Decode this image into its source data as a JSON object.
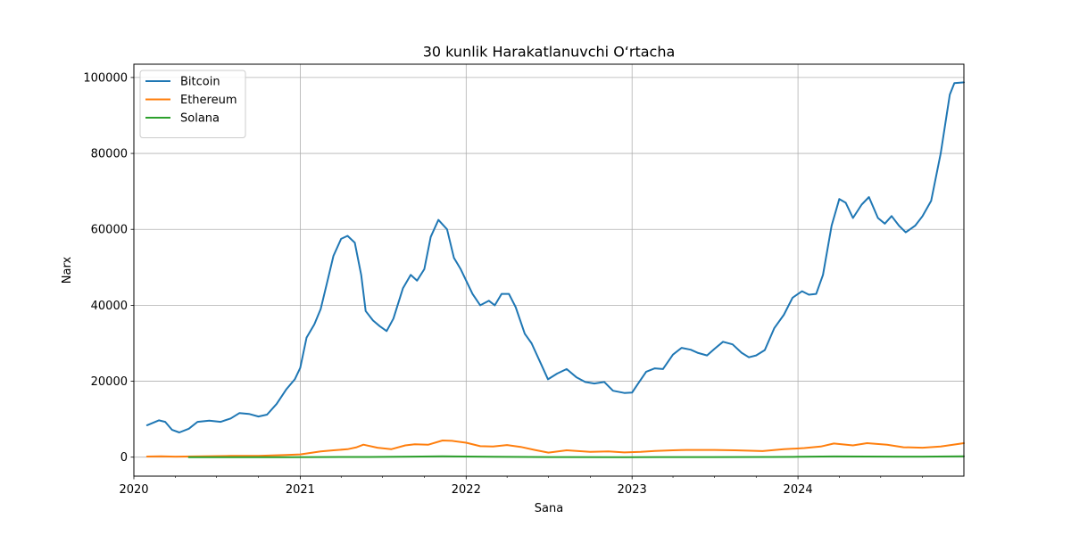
{
  "chart_data": {
    "type": "line",
    "title": "30 kunlik Harakatlanuvchi O‘rtacha",
    "xlabel": "Sana",
    "ylabel": "Narx",
    "xlim": [
      "2020-01-01",
      "2024-12-31"
    ],
    "ylim": [
      -5000,
      103500
    ],
    "x_ticks": [
      "2020",
      "2021",
      "2022",
      "2023",
      "2024"
    ],
    "y_ticks": [
      0,
      20000,
      40000,
      60000,
      80000,
      100000
    ],
    "y_tick_labels": [
      "0",
      "20000",
      "40000",
      "60000",
      "80000",
      "100000"
    ],
    "grid": true,
    "legend_position": "top-left",
    "series": [
      {
        "name": "Bitcoin",
        "color": "#1f77b4",
        "points": [
          [
            "2020-01-30",
            8400
          ],
          [
            "2020-02-25",
            9700
          ],
          [
            "2020-03-10",
            9300
          ],
          [
            "2020-03-25",
            7200
          ],
          [
            "2020-04-10",
            6500
          ],
          [
            "2020-05-01",
            7500
          ],
          [
            "2020-05-20",
            9300
          ],
          [
            "2020-06-15",
            9600
          ],
          [
            "2020-07-10",
            9300
          ],
          [
            "2020-08-01",
            10200
          ],
          [
            "2020-08-20",
            11600
          ],
          [
            "2020-09-10",
            11400
          ],
          [
            "2020-10-01",
            10700
          ],
          [
            "2020-10-20",
            11200
          ],
          [
            "2020-11-10",
            14000
          ],
          [
            "2020-12-01",
            17800
          ],
          [
            "2020-12-20",
            20500
          ],
          [
            "2021-01-01",
            23500
          ],
          [
            "2021-01-15",
            31500
          ],
          [
            "2021-02-01",
            35000
          ],
          [
            "2021-02-15",
            39000
          ],
          [
            "2021-03-01",
            46000
          ],
          [
            "2021-03-15",
            53000
          ],
          [
            "2021-04-01",
            57500
          ],
          [
            "2021-04-15",
            58300
          ],
          [
            "2021-05-01",
            56500
          ],
          [
            "2021-05-15",
            48000
          ],
          [
            "2021-05-25",
            38500
          ],
          [
            "2021-06-10",
            36000
          ],
          [
            "2021-06-25",
            34500
          ],
          [
            "2021-07-10",
            33200
          ],
          [
            "2021-07-25",
            36500
          ],
          [
            "2021-08-15",
            44500
          ],
          [
            "2021-09-01",
            48000
          ],
          [
            "2021-09-15",
            46500
          ],
          [
            "2021-10-01",
            49500
          ],
          [
            "2021-10-15",
            58000
          ],
          [
            "2021-11-01",
            62500
          ],
          [
            "2021-11-20",
            60000
          ],
          [
            "2021-12-05",
            52500
          ],
          [
            "2021-12-20",
            49500
          ],
          [
            "2022-01-01",
            46500
          ],
          [
            "2022-01-15",
            43000
          ],
          [
            "2022-02-01",
            40000
          ],
          [
            "2022-02-20",
            41200
          ],
          [
            "2022-03-05",
            40000
          ],
          [
            "2022-03-20",
            43000
          ],
          [
            "2022-04-05",
            43000
          ],
          [
            "2022-04-20",
            39500
          ],
          [
            "2022-05-10",
            32500
          ],
          [
            "2022-05-25",
            30000
          ],
          [
            "2022-06-15",
            24500
          ],
          [
            "2022-06-30",
            20500
          ],
          [
            "2022-07-20",
            22000
          ],
          [
            "2022-08-10",
            23200
          ],
          [
            "2022-09-01",
            21000
          ],
          [
            "2022-09-20",
            19800
          ],
          [
            "2022-10-10",
            19400
          ],
          [
            "2022-11-01",
            19800
          ],
          [
            "2022-11-20",
            17500
          ],
          [
            "2022-12-15",
            16900
          ],
          [
            "2023-01-01",
            17000
          ],
          [
            "2023-01-15",
            19500
          ],
          [
            "2023-02-01",
            22500
          ],
          [
            "2023-02-20",
            23400
          ],
          [
            "2023-03-10",
            23200
          ],
          [
            "2023-04-01",
            27000
          ],
          [
            "2023-04-20",
            28800
          ],
          [
            "2023-05-10",
            28300
          ],
          [
            "2023-05-25",
            27500
          ],
          [
            "2023-06-15",
            26800
          ],
          [
            "2023-07-01",
            28500
          ],
          [
            "2023-07-20",
            30400
          ],
          [
            "2023-08-10",
            29700
          ],
          [
            "2023-08-30",
            27500
          ],
          [
            "2023-09-15",
            26300
          ],
          [
            "2023-10-01",
            26800
          ],
          [
            "2023-10-20",
            28200
          ],
          [
            "2023-11-10",
            34000
          ],
          [
            "2023-12-01",
            37500
          ],
          [
            "2023-12-20",
            42000
          ],
          [
            "2024-01-10",
            43700
          ],
          [
            "2024-01-25",
            42800
          ],
          [
            "2024-02-10",
            43000
          ],
          [
            "2024-02-25",
            48000
          ],
          [
            "2024-03-15",
            61000
          ],
          [
            "2024-04-01",
            68000
          ],
          [
            "2024-04-15",
            67000
          ],
          [
            "2024-05-01",
            63000
          ],
          [
            "2024-05-20",
            66500
          ],
          [
            "2024-06-05",
            68500
          ],
          [
            "2024-06-25",
            63000
          ],
          [
            "2024-07-10",
            61500
          ],
          [
            "2024-07-25",
            63500
          ],
          [
            "2024-08-10",
            61000
          ],
          [
            "2024-08-25",
            59200
          ],
          [
            "2024-09-15",
            61000
          ],
          [
            "2024-10-01",
            63500
          ],
          [
            "2024-10-20",
            67500
          ],
          [
            "2024-11-10",
            80000
          ],
          [
            "2024-11-30",
            95500
          ],
          [
            "2024-12-10",
            98500
          ],
          [
            "2024-12-31",
            98700
          ]
        ]
      },
      {
        "name": "Ethereum",
        "color": "#ff7f0e",
        "points": [
          [
            "2020-01-30",
            170
          ],
          [
            "2020-03-01",
            240
          ],
          [
            "2020-04-01",
            150
          ],
          [
            "2020-06-01",
            230
          ],
          [
            "2020-08-01",
            330
          ],
          [
            "2020-10-01",
            360
          ],
          [
            "2020-12-01",
            560
          ],
          [
            "2021-01-01",
            740
          ],
          [
            "2021-02-15",
            1500
          ],
          [
            "2021-03-15",
            1800
          ],
          [
            "2021-04-15",
            2100
          ],
          [
            "2021-05-05",
            2600
          ],
          [
            "2021-05-20",
            3300
          ],
          [
            "2021-06-20",
            2500
          ],
          [
            "2021-07-20",
            2100
          ],
          [
            "2021-08-20",
            3100
          ],
          [
            "2021-09-10",
            3400
          ],
          [
            "2021-10-10",
            3300
          ],
          [
            "2021-11-10",
            4400
          ],
          [
            "2021-12-01",
            4300
          ],
          [
            "2022-01-01",
            3800
          ],
          [
            "2022-02-01",
            2900
          ],
          [
            "2022-03-01",
            2800
          ],
          [
            "2022-04-01",
            3200
          ],
          [
            "2022-05-01",
            2700
          ],
          [
            "2022-06-01",
            1900
          ],
          [
            "2022-07-01",
            1200
          ],
          [
            "2022-08-10",
            1800
          ],
          [
            "2022-10-01",
            1400
          ],
          [
            "2022-11-10",
            1500
          ],
          [
            "2022-12-15",
            1250
          ],
          [
            "2023-01-20",
            1400
          ],
          [
            "2023-02-20",
            1650
          ],
          [
            "2023-04-01",
            1800
          ],
          [
            "2023-05-01",
            1900
          ],
          [
            "2023-07-01",
            1900
          ],
          [
            "2023-08-15",
            1800
          ],
          [
            "2023-10-15",
            1600
          ],
          [
            "2023-12-01",
            2100
          ],
          [
            "2024-01-15",
            2400
          ],
          [
            "2024-02-20",
            2800
          ],
          [
            "2024-03-20",
            3600
          ],
          [
            "2024-05-01",
            3100
          ],
          [
            "2024-06-01",
            3700
          ],
          [
            "2024-07-15",
            3300
          ],
          [
            "2024-08-20",
            2600
          ],
          [
            "2024-10-01",
            2500
          ],
          [
            "2024-11-10",
            2800
          ],
          [
            "2024-12-31",
            3700
          ]
        ]
      },
      {
        "name": "Solana",
        "color": "#2ca02c",
        "points": [
          [
            "2020-05-01",
            1
          ],
          [
            "2020-12-01",
            2
          ],
          [
            "2021-02-01",
            20
          ],
          [
            "2021-06-01",
            40
          ],
          [
            "2021-09-01",
            150
          ],
          [
            "2021-11-10",
            220
          ],
          [
            "2022-03-01",
            100
          ],
          [
            "2022-07-01",
            35
          ],
          [
            "2022-12-15",
            12
          ],
          [
            "2023-03-01",
            22
          ],
          [
            "2023-07-01",
            22
          ],
          [
            "2023-11-01",
            60
          ],
          [
            "2024-01-01",
            100
          ],
          [
            "2024-03-20",
            180
          ],
          [
            "2024-06-01",
            160
          ],
          [
            "2024-08-10",
            140
          ],
          [
            "2024-10-01",
            150
          ],
          [
            "2024-12-31",
            230
          ]
        ]
      }
    ]
  }
}
